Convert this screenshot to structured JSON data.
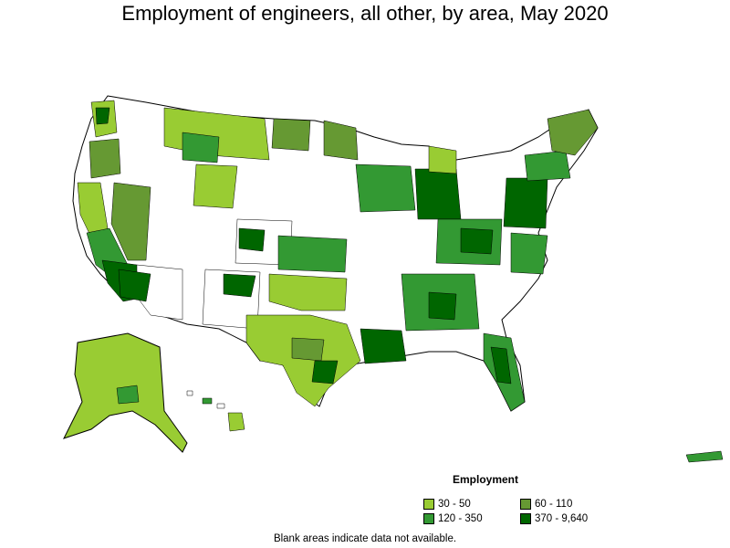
{
  "title": "Employment of engineers, all other, by area, May 2020",
  "legend": {
    "title": "Employment",
    "items": [
      {
        "label": "30 - 50",
        "color": "#99cc33"
      },
      {
        "label": "60 - 110",
        "color": "#669933"
      },
      {
        "label": "120 - 350",
        "color": "#339933"
      },
      {
        "label": "370 - 9,640",
        "color": "#006600"
      }
    ]
  },
  "footnote": "Blank areas indicate data not available.",
  "colors": {
    "no_data": "#ffffff",
    "border": "#000000"
  }
}
